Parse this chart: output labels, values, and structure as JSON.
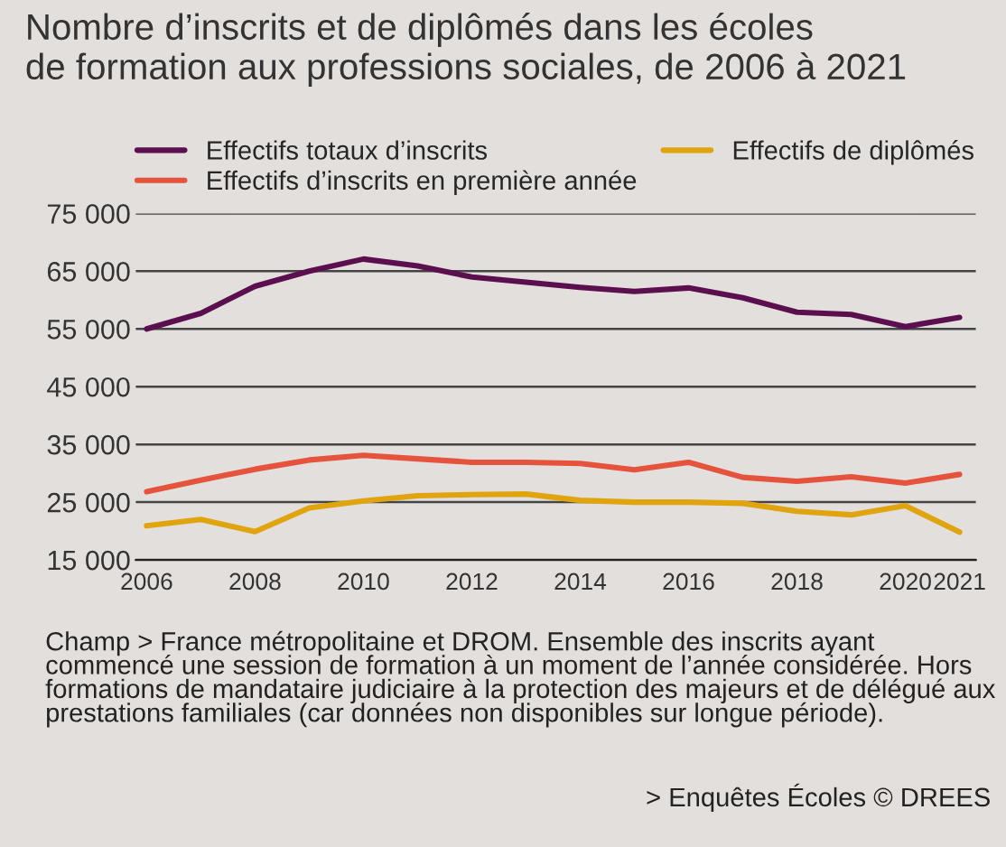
{
  "chart_data": {
    "type": "line",
    "title": "Nombre d’inscrits et de diplômés dans les écoles\nde formation aux professions sociales, de 2006 à 2021",
    "x": [
      2006,
      2007,
      2008,
      2009,
      2010,
      2011,
      2012,
      2013,
      2014,
      2015,
      2016,
      2017,
      2018,
      2019,
      2020,
      2021
    ],
    "series": [
      {
        "name": "Effectifs totaux d’inscrits",
        "color": "#5b0f4e",
        "values": [
          55000,
          57700,
          62400,
          65000,
          67100,
          65900,
          64000,
          63100,
          62200,
          61500,
          62100,
          60400,
          57900,
          57500,
          55400,
          57000
        ]
      },
      {
        "name": "Effectifs d’inscrits en première année",
        "color": "#e5533d",
        "values": [
          26800,
          28800,
          30700,
          32300,
          33100,
          32500,
          31900,
          31900,
          31700,
          30600,
          31900,
          29300,
          28600,
          29400,
          28300,
          29800
        ]
      },
      {
        "name": "Effectifs de diplômés",
        "color": "#e0a40f",
        "values": [
          20900,
          22000,
          19900,
          24000,
          25200,
          26100,
          26300,
          26400,
          25300,
          25000,
          25000,
          24800,
          23400,
          22800,
          24400,
          19800
        ]
      }
    ],
    "xlim": [
      2005.8,
      2021.3
    ],
    "xticks": [
      2006,
      2008,
      2010,
      2012,
      2014,
      2016,
      2018,
      2020,
      2021
    ],
    "ylim": [
      15000,
      75000
    ],
    "yticks": [
      {
        "value": 15000,
        "label": "15 000"
      },
      {
        "value": 25000,
        "label": "25 000"
      },
      {
        "value": 35000,
        "label": "35 000"
      },
      {
        "value": 45000,
        "label": "45 000"
      },
      {
        "value": 55000,
        "label": "55 000"
      },
      {
        "value": 65000,
        "label": "65 000"
      },
      {
        "value": 75000,
        "label": "75 000"
      }
    ],
    "grid": "y",
    "legend": "top",
    "line_style": "solid",
    "annotations": [
      "Champ > France métropolitaine et DROM. Ensemble des inscrits ayant commencé une session de formation à un moment de l’année considérée. Hors formations de mandataire judiciaire à la protection des majeurs et de délégué aux prestations familiales (car données non disponibles sur longue période).",
      "> Enquêtes Écoles © DREES"
    ]
  }
}
